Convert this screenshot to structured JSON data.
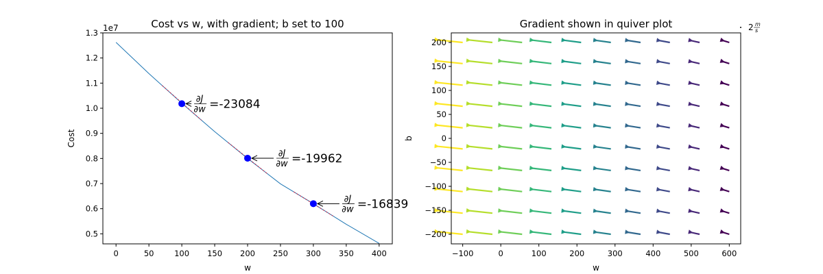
{
  "chart_data": [
    {
      "type": "line",
      "title": "Cost vs w, with gradient; b set to 100",
      "xlabel": "w",
      "ylabel": "Cost",
      "y_offset_text": "1e7",
      "xlim": [
        -20,
        420
      ],
      "ylim": [
        0.46,
        1.3
      ],
      "y_scale_factor": 10000000,
      "x_ticks": [
        0,
        50,
        100,
        150,
        200,
        250,
        300,
        350,
        400
      ],
      "y_ticks": [
        0.5,
        0.6,
        0.7,
        0.8,
        0.9,
        1.0,
        1.1,
        1.2,
        1.3
      ],
      "x_tick_labels": [
        "0",
        "50",
        "100",
        "150",
        "200",
        "250",
        "300",
        "350",
        "400"
      ],
      "y_tick_labels": [
        "0.5",
        "0.6",
        "0.7",
        "0.8",
        "0.9",
        "1.0",
        "1.1",
        "1.2",
        "1.3"
      ],
      "curve": {
        "color": "#1f77b4",
        "x": [
          0,
          50,
          100,
          150,
          200,
          250,
          300,
          350,
          400
        ],
        "y": [
          1.262,
          1.138,
          1.02,
          0.907,
          0.8,
          0.699,
          0.62,
          0.538,
          0.462
        ]
      },
      "points": [
        {
          "w": 100,
          "cost": 1.018,
          "gradient_label": "=-23084",
          "fraction_num": "∂J",
          "fraction_den": "∂w"
        },
        {
          "w": 200,
          "cost": 0.801,
          "gradient_label": "=-19962",
          "fraction_num": "∂J",
          "fraction_den": "∂w"
        },
        {
          "w": 300,
          "cost": 0.62,
          "gradient_label": "=-16839",
          "fraction_num": "∂J",
          "fraction_den": "∂w"
        }
      ],
      "point_color": "#0000ff",
      "tangent_color": "#c03050",
      "grid": false
    },
    {
      "type": "quiver",
      "title": "Gradient shown in quiver plot",
      "xlabel": "w",
      "ylabel": "b",
      "xlim": [
        -130,
        630
      ],
      "ylim": [
        -220,
        220
      ],
      "x_ticks": [
        -100,
        0,
        100,
        200,
        300,
        400,
        500,
        600
      ],
      "y_ticks": [
        -200,
        -150,
        -100,
        -50,
        0,
        50,
        100,
        150,
        200
      ],
      "x_tick_labels": [
        "−100",
        "0",
        "100",
        "200",
        "300",
        "400",
        "500",
        "600"
      ],
      "y_tick_labels": [
        "−200",
        "−150",
        "−100",
        "−50",
        "0",
        "50",
        "100",
        "150",
        "200"
      ],
      "grid_w": [
        -100,
        -22,
        56,
        133,
        211,
        289,
        367,
        444,
        522,
        600
      ],
      "grid_b": [
        -200,
        -156,
        -111,
        -67,
        -22,
        22,
        67,
        111,
        156,
        200
      ],
      "colormap": "viridis",
      "quiverkey_label": "2",
      "quiverkey_unit_num": "m",
      "quiverkey_unit_den": "s",
      "grid": false
    }
  ]
}
